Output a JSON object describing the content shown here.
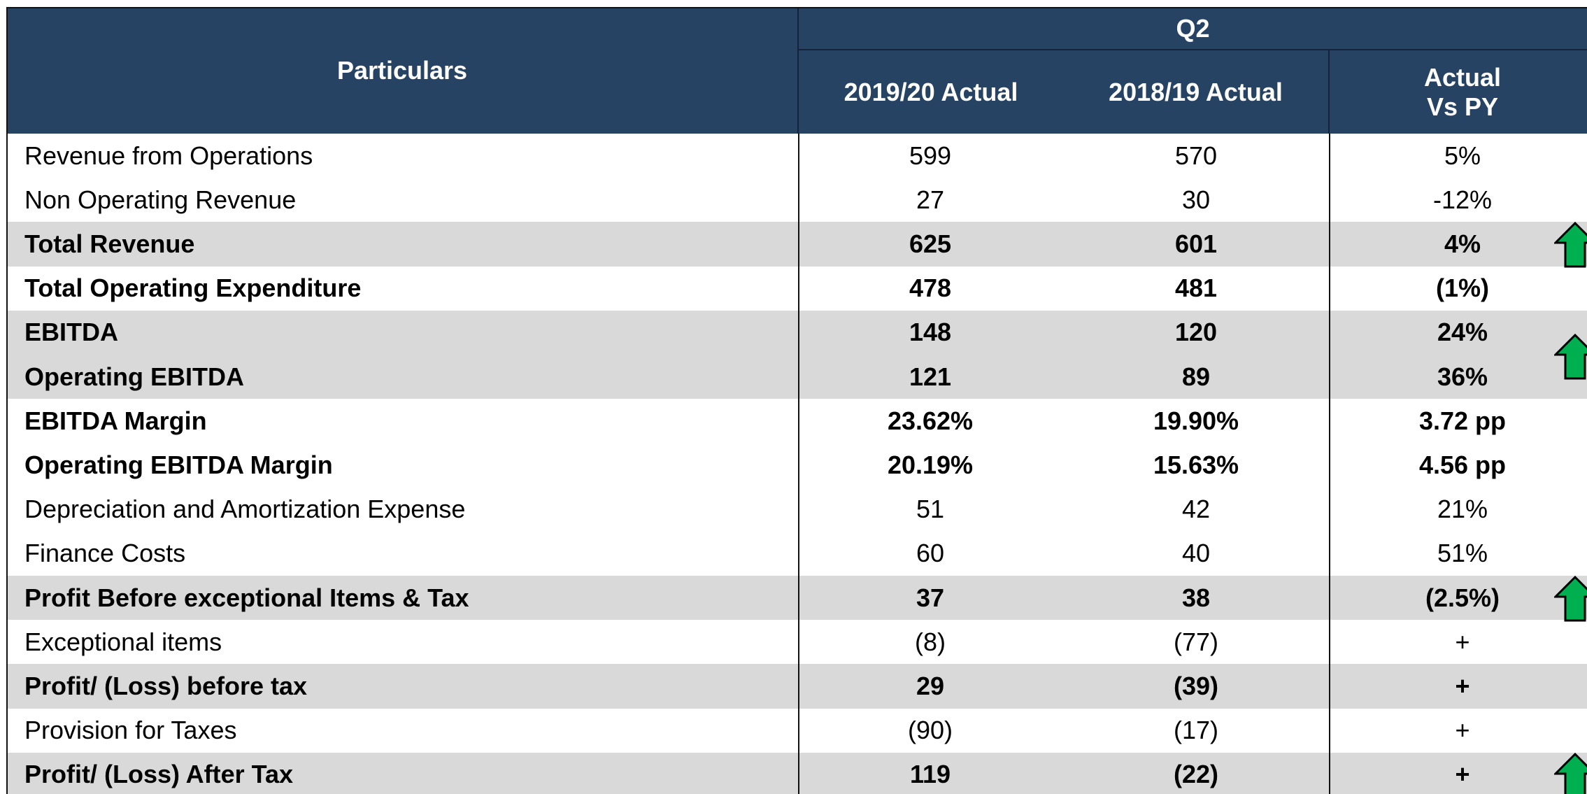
{
  "header": {
    "title": "Particulars",
    "group": "Q2",
    "columns": [
      "2019/20 Actual",
      "2018/19 Actual",
      "Actual Vs PY"
    ]
  },
  "table": {
    "rows": [
      {
        "label": "Revenue from Operations",
        "cells": [
          "599",
          "570",
          "5%"
        ]
      },
      {
        "label": "Non Operating Revenue",
        "cells": [
          "27",
          "30",
          "-12%"
        ]
      },
      {
        "label": "Total Revenue",
        "cells": [
          "625",
          "601",
          "4%"
        ],
        "bold": true,
        "shaded": true,
        "arrow": true
      },
      {
        "label": "Total Operating Expenditure",
        "cells": [
          "478",
          "481",
          "(1%)"
        ],
        "bold": true
      },
      {
        "label": "EBITDA",
        "cells": [
          "148",
          "120",
          "24%"
        ],
        "bold": true,
        "shaded": true
      },
      {
        "label": "Operating  EBITDA",
        "cells": [
          "121",
          "89",
          "36%"
        ],
        "bold": true,
        "shaded": true,
        "arrow": true
      },
      {
        "label": "EBITDA Margin",
        "cells": [
          "23.62%",
          "19.90%",
          "3.72 pp"
        ],
        "bold": true
      },
      {
        "label": "Operating EBITDA Margin",
        "cells": [
          "20.19%",
          "15.63%",
          "4.56 pp"
        ],
        "bold": true
      },
      {
        "label": "Depreciation and Amortization Expense",
        "cells": [
          "51",
          "42",
          "21%"
        ]
      },
      {
        "label": "Finance Costs",
        "cells": [
          "60",
          "40",
          "51%"
        ]
      },
      {
        "label": "Profit Before exceptional Items & Tax",
        "cells": [
          "37",
          "38",
          "(2.5%)"
        ],
        "bold": true,
        "shaded": true,
        "arrow": true
      },
      {
        "label": "Exceptional items",
        "cells": [
          "(8)",
          "(77)",
          "+"
        ]
      },
      {
        "label": "Profit/ (Loss) before tax",
        "cells": [
          "29",
          "(39)",
          "+"
        ],
        "bold": true,
        "shaded": true
      },
      {
        "label": "Provision for Taxes",
        "cells": [
          "(90)",
          "(17)",
          "+"
        ]
      },
      {
        "label": "Profit/ (Loss) After Tax",
        "cells": [
          "119",
          "(22)",
          "+"
        ],
        "bold": true,
        "shaded": true,
        "arrow": true
      }
    ]
  }
}
